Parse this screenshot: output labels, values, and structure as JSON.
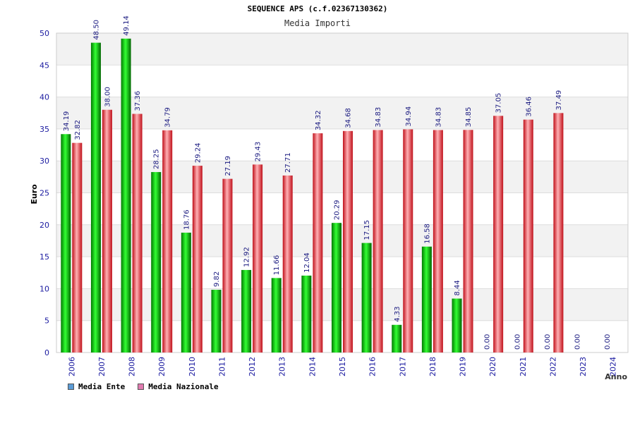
{
  "header": {
    "title": "SEQUENCE APS (c.f.02367130362)",
    "subtitle": "Media Importi"
  },
  "chart_data": {
    "type": "bar",
    "title": "SEQUENCE APS (c.f.02367130362)",
    "subtitle": "Media Importi",
    "xlabel": "Anno",
    "ylabel": "Euro",
    "ylim": [
      0,
      50
    ],
    "yticks": [
      0,
      5,
      10,
      15,
      20,
      25,
      30,
      35,
      40,
      45,
      50
    ],
    "grid": true,
    "legend_position": "bottom-left",
    "categories": [
      "2006",
      "2007",
      "2008",
      "2009",
      "2010",
      "2011",
      "2012",
      "2013",
      "2014",
      "2015",
      "2016",
      "2017",
      "2018",
      "2019",
      "2020",
      "2021",
      "2022",
      "2023",
      "2024"
    ],
    "series": [
      {
        "name": "Media Ente",
        "color": "#00aa00",
        "legend_color": "#5b9bd5",
        "values": [
          34.19,
          48.5,
          49.14,
          28.25,
          18.76,
          9.82,
          12.92,
          11.66,
          12.04,
          20.29,
          17.15,
          4.33,
          16.58,
          8.44,
          0.0,
          0.0,
          0.0,
          0.0,
          0.0
        ],
        "labels": [
          "34.19",
          "48.50",
          "49.14",
          "28.25",
          "18.76",
          "9.82",
          "12.92",
          "11.66",
          "12.04",
          "20.29",
          "17.15",
          "4.33",
          "16.58",
          "8.44",
          "0.00",
          "0.00",
          "0.00",
          "0.00",
          "0.00"
        ]
      },
      {
        "name": "Media Nazionale",
        "color": "#e8202a",
        "legend_color": "#e07bb0",
        "values": [
          32.82,
          38.0,
          37.36,
          34.79,
          29.24,
          27.19,
          29.43,
          27.71,
          34.32,
          34.68,
          34.83,
          34.94,
          34.83,
          34.85,
          37.05,
          36.46,
          37.49,
          null,
          null
        ],
        "labels": [
          "32.82",
          "38.00",
          "37.36",
          "34.79",
          "29.24",
          "27.19",
          "29.43",
          "27.71",
          "34.32",
          "34.68",
          "34.83",
          "34.94",
          "34.83",
          "34.85",
          "37.05",
          "36.46",
          "37.49",
          null,
          null
        ]
      }
    ]
  }
}
